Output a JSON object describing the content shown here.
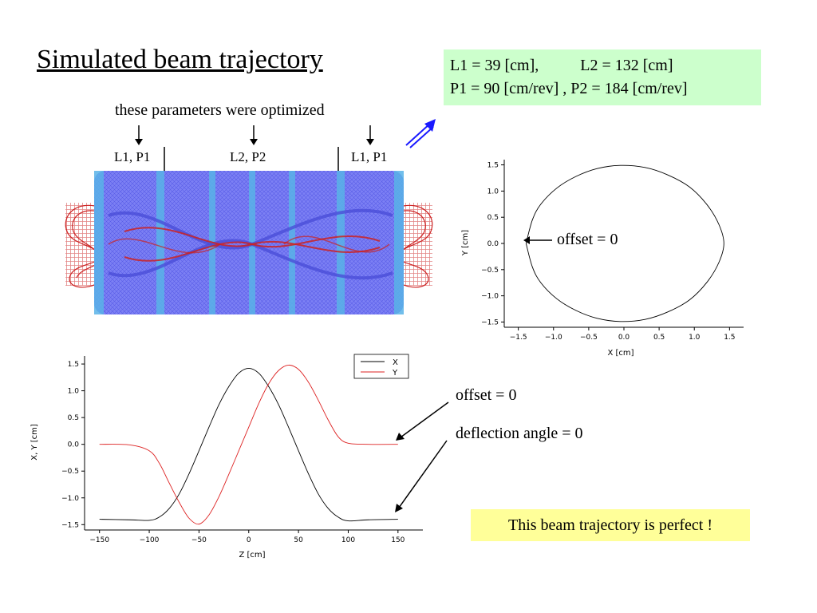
{
  "title": "Simulated beam trajectory",
  "params": {
    "l1": "L1 = 39 [cm],",
    "l2": "L2 = 132 [cm]",
    "p_line": "P1 = 90 [cm/rev] , P2 = 184 [cm/rev]"
  },
  "optimized_note": "these parameters were optimized",
  "segments": {
    "left": "L1, P1",
    "middle": "L2, P2",
    "right": "L1, P1"
  },
  "annotations": {
    "xy_offset": "offset = 0",
    "z_offset": "offset = 0",
    "deflection": "deflection angle = 0"
  },
  "conclusion": "This beam trajectory is perfect !",
  "colors": {
    "params_bg": "#ccffcc",
    "conclusion_bg": "#ffff99",
    "coil_blue": "#6a6cf0",
    "coil_cyan": "#59b3e8",
    "trajectory_red": "#cc2222"
  },
  "chart_data": [
    {
      "type": "line",
      "title": "",
      "xlabel": "X [cm]",
      "ylabel": "Y [cm]",
      "xlim": [
        -1.7,
        1.7
      ],
      "ylim": [
        -1.6,
        1.6
      ],
      "xticks": [
        "-1.5",
        "-1.0",
        "-0.5",
        "0.0",
        "0.5",
        "1.0",
        "1.5"
      ],
      "yticks": [
        "-1.5",
        "-1.0",
        "-0.5",
        "0.0",
        "0.5",
        "1.0",
        "1.5"
      ],
      "xtick_values": [
        -1.5,
        -1.0,
        -0.5,
        0.0,
        0.5,
        1.0,
        1.5
      ],
      "ytick_values": [
        -1.5,
        -1.0,
        -0.5,
        0.0,
        0.5,
        1.0,
        1.5
      ],
      "series": [
        {
          "color": "#000000",
          "x": [
            -1.39,
            -1.3,
            -1.18,
            -0.95,
            -0.68,
            -0.38,
            -0.05,
            0.3,
            0.62,
            0.93,
            1.18,
            1.35,
            1.42,
            1.35,
            1.18,
            0.93,
            0.62,
            0.3,
            -0.05,
            -0.38,
            -0.68,
            -0.95,
            -1.18,
            -1.3,
            -1.39
          ],
          "y": [
            0.0,
            0.45,
            0.75,
            1.06,
            1.28,
            1.43,
            1.49,
            1.45,
            1.31,
            1.08,
            0.74,
            0.36,
            0.0,
            -0.36,
            -0.74,
            -1.08,
            -1.31,
            -1.45,
            -1.49,
            -1.43,
            -1.28,
            -1.06,
            -0.75,
            -0.45,
            0.0
          ]
        }
      ]
    },
    {
      "type": "line",
      "title": "",
      "xlabel": "Z [cm]",
      "ylabel": "X, Y [cm]",
      "xlim": [
        -165,
        175
      ],
      "ylim": [
        -1.6,
        1.65
      ],
      "xticks": [
        "-150",
        "-100",
        "-50",
        "0",
        "50",
        "100",
        "150"
      ],
      "yticks": [
        "-1.5",
        "-1.0",
        "-0.5",
        "0.0",
        "0.5",
        "1.0",
        "1.5"
      ],
      "xtick_values": [
        -150,
        -100,
        -50,
        0,
        50,
        100,
        150
      ],
      "ytick_values": [
        -1.5,
        -1.0,
        -0.5,
        0.0,
        0.5,
        1.0,
        1.5
      ],
      "legend_position": "top-right",
      "series": [
        {
          "name": "X",
          "color": "#000000",
          "x": [
            -150,
            -120,
            -100,
            -90,
            -80,
            -70,
            -60,
            -50,
            -40,
            -30,
            -20,
            -10,
            0,
            10,
            20,
            30,
            40,
            50,
            60,
            70,
            80,
            90,
            100,
            120,
            150
          ],
          "y": [
            -1.4,
            -1.41,
            -1.42,
            -1.36,
            -1.2,
            -0.93,
            -0.55,
            -0.12,
            0.32,
            0.74,
            1.08,
            1.33,
            1.42,
            1.33,
            1.08,
            0.74,
            0.32,
            -0.12,
            -0.55,
            -0.93,
            -1.2,
            -1.36,
            -1.43,
            -1.41,
            -1.4
          ]
        },
        {
          "name": "Y",
          "color": "#dd2222",
          "x": [
            -150,
            -120,
            -100,
            -90,
            -80,
            -70,
            -60,
            -50,
            -40,
            -30,
            -20,
            -10,
            0,
            10,
            20,
            30,
            40,
            50,
            60,
            70,
            80,
            90,
            100,
            120,
            150
          ],
          "y": [
            0.0,
            -0.01,
            -0.12,
            -0.35,
            -0.72,
            -1.08,
            -1.38,
            -1.49,
            -1.32,
            -0.98,
            -0.56,
            -0.12,
            0.32,
            0.76,
            1.13,
            1.38,
            1.48,
            1.4,
            1.16,
            0.82,
            0.45,
            0.14,
            0.02,
            0.0,
            0.0
          ]
        }
      ]
    }
  ]
}
